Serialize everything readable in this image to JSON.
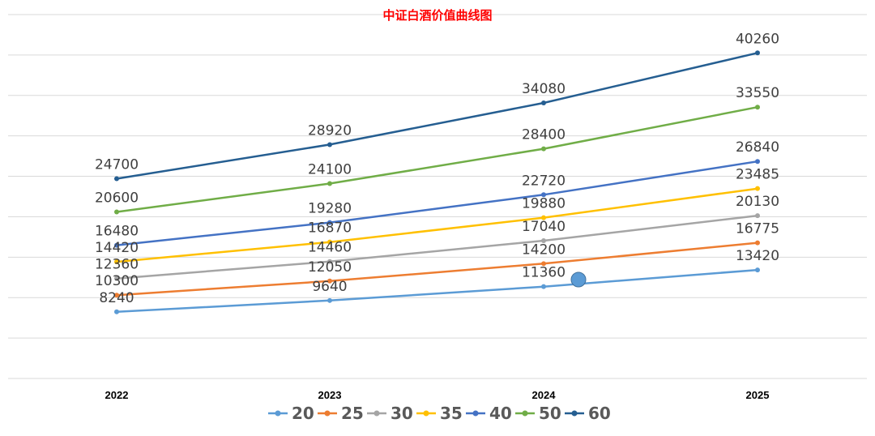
{
  "chart_data": {
    "type": "line",
    "title": "中证白酒价值曲线图",
    "categories": [
      "2022",
      "2023",
      "2024",
      "2025"
    ],
    "series": [
      {
        "name": "20",
        "color": "#5b9bd5",
        "values": [
          8240,
          9640,
          11360,
          13420
        ]
      },
      {
        "name": "25",
        "color": "#ed7d31",
        "values": [
          10300,
          12050,
          14200,
          16775
        ]
      },
      {
        "name": "30",
        "color": "#a5a5a5",
        "values": [
          12360,
          14460,
          17040,
          20130
        ]
      },
      {
        "name": "35",
        "color": "#ffc000",
        "values": [
          14420,
          16870,
          19880,
          23485
        ]
      },
      {
        "name": "40",
        "color": "#4472c4",
        "values": [
          16480,
          19280,
          22720,
          26840
        ]
      },
      {
        "name": "50",
        "color": "#70ad47",
        "values": [
          20600,
          24100,
          28400,
          33550
        ]
      },
      {
        "name": "60",
        "color": "#255e91",
        "values": [
          24700,
          28920,
          34080,
          40260
        ]
      }
    ],
    "ylim": [
      0,
      45000
    ],
    "grid": true,
    "legend_position": "bottom",
    "xlabel": "",
    "ylabel": "",
    "marker_color": "#5b9bd5"
  }
}
